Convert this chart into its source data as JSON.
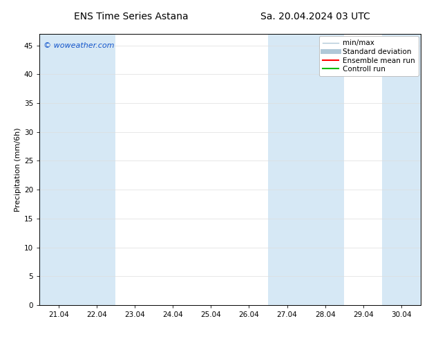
{
  "title_left": "ENS Time Series Astana",
  "title_right": "Sa. 20.04.2024 03 UTC",
  "ylabel": "Precipitation (mm/6h)",
  "watermark": "© woweather.com",
  "watermark_color": "#1155cc",
  "background_color": "#ffffff",
  "plot_bg_color": "#ffffff",
  "ylim": [
    0,
    47
  ],
  "yticks": [
    0,
    5,
    10,
    15,
    20,
    25,
    30,
    35,
    40,
    45
  ],
  "xtick_labels": [
    "21.04",
    "22.04",
    "23.04",
    "24.04",
    "25.04",
    "26.04",
    "27.04",
    "28.04",
    "29.04",
    "30.04"
  ],
  "shaded_bands": [
    {
      "x_start": 20.5,
      "x_end": 21.5,
      "color": "#d6e8f5"
    },
    {
      "x_start": 21.5,
      "x_end": 22.5,
      "color": "#d6e8f5"
    },
    {
      "x_start": 26.5,
      "x_end": 27.5,
      "color": "#d6e8f5"
    },
    {
      "x_start": 27.5,
      "x_end": 28.5,
      "color": "#d6e8f5"
    },
    {
      "x_start": 29.5,
      "x_end": 30.5,
      "color": "#d6e8f5"
    }
  ],
  "x_min": 20.5,
  "x_max": 30.5,
  "font_size_title": 10,
  "font_size_axis": 8,
  "font_size_tick": 7.5,
  "font_size_legend": 7.5,
  "font_size_watermark": 8
}
